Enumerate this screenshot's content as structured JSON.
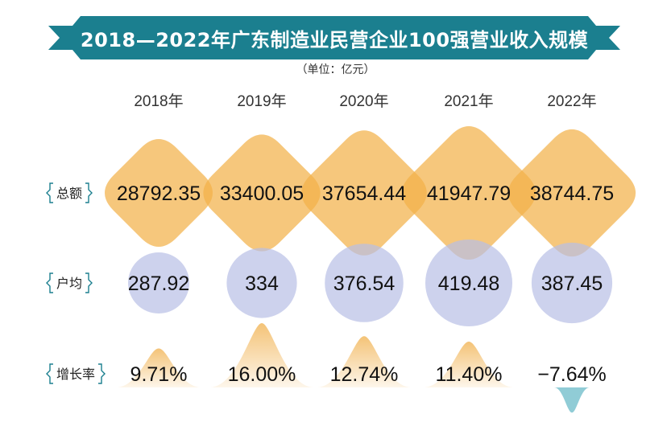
{
  "title": "2018—2022年广东制造业民营企业100强营业收入规模",
  "unit": "（单位：亿元）",
  "colors": {
    "banner": "#1b7f8f",
    "diamond": "#f2b24a",
    "circle": "#b8bfe6",
    "peak": "#f4c377",
    "valley": "#7cc3cf"
  },
  "chart_data": {
    "type": "table",
    "title": "2018—2022年广东制造业民营企业100强营业收入规模",
    "unit": "（单位：亿元）",
    "categories": [
      "2018年",
      "2019年",
      "2020年",
      "2021年",
      "2022年"
    ],
    "series": [
      {
        "name": "总额",
        "values": [
          28792.35,
          33400.05,
          37654.44,
          41947.79,
          38744.75
        ],
        "labels": [
          "28792.35",
          "33400.05",
          "37654.44",
          "41947.79",
          "38744.75"
        ]
      },
      {
        "name": "户均",
        "values": [
          287.92,
          334,
          376.54,
          419.48,
          387.45
        ],
        "labels": [
          "287.92",
          "334",
          "376.54",
          "419.48",
          "387.45"
        ]
      },
      {
        "name": "增长率",
        "values": [
          9.71,
          16.0,
          12.74,
          11.4,
          -7.64
        ],
        "labels": [
          "9.71%",
          "16.00%",
          "12.74%",
          "11.40%",
          "−7.64%"
        ]
      }
    ]
  }
}
